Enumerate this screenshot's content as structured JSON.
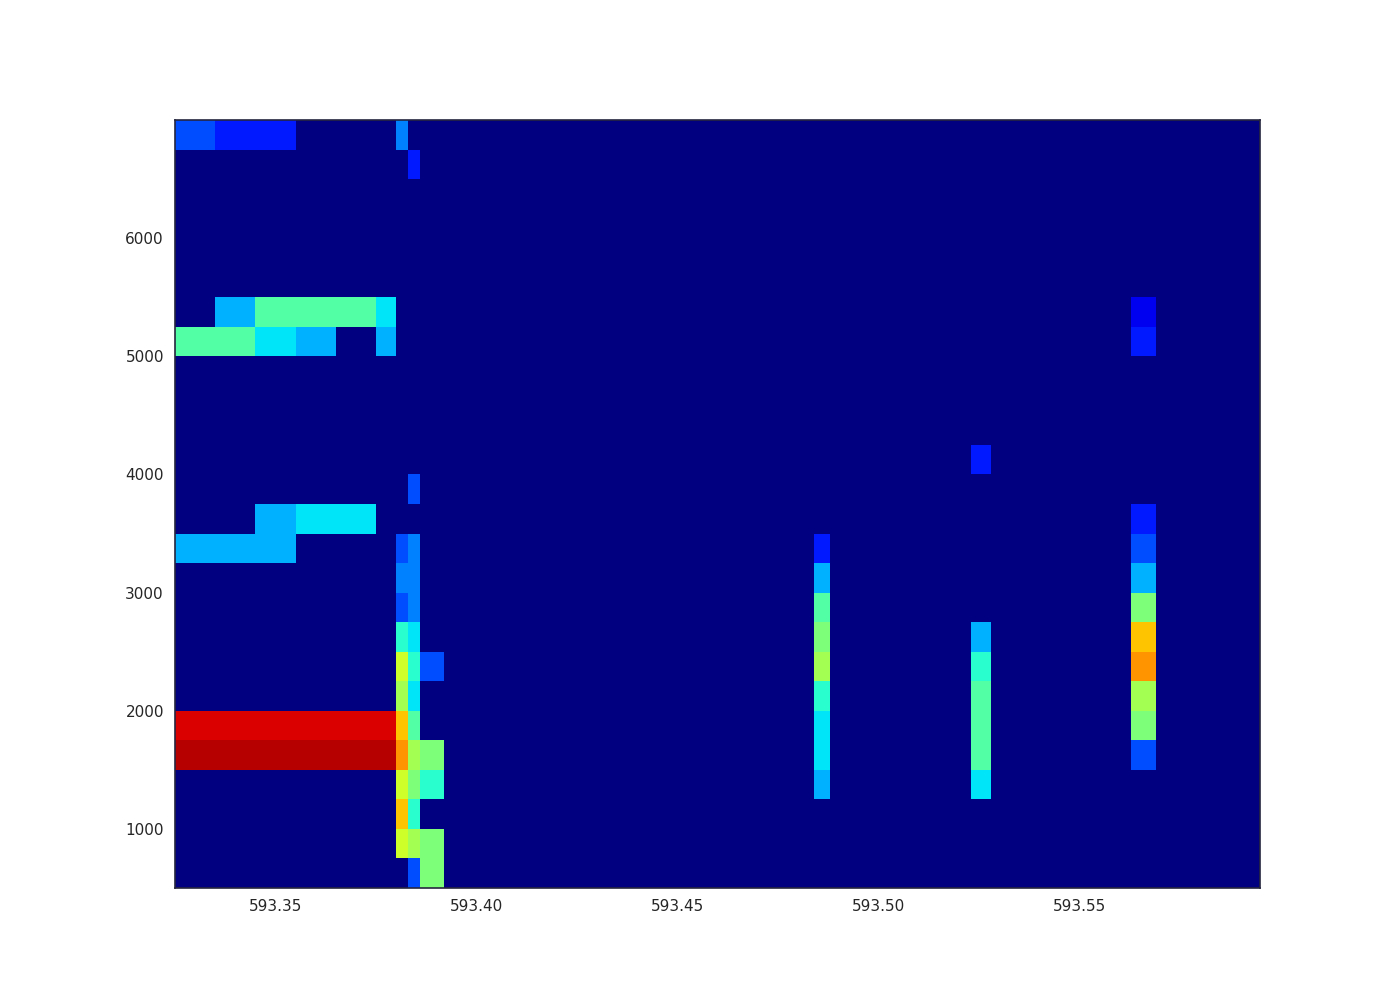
{
  "chart_data": {
    "type": "heatmap",
    "color": "jet",
    "xlim": [
      593.325,
      593.595
    ],
    "ylim": [
      500,
      7000
    ],
    "xticks": [
      593.35,
      {
        "value": 593.4,
        "label": "593.40"
      },
      593.45,
      {
        "value": 593.5,
        "label": "593.50"
      },
      593.55
    ],
    "yticks": [
      1000,
      2000,
      3000,
      4000,
      5000,
      6000
    ],
    "zlim": [
      0,
      1
    ],
    "x_edges": [
      593.325,
      593.335,
      593.345,
      593.355,
      593.365,
      593.375,
      593.38,
      593.383,
      593.386,
      593.392,
      593.484,
      593.488,
      593.523,
      593.528,
      593.563,
      593.569,
      593.595
    ],
    "y_edges": [
      500,
      750,
      1000,
      1250,
      1500,
      1750,
      2000,
      2250,
      2500,
      2750,
      3000,
      3250,
      3500,
      3750,
      4000,
      4250,
      4500,
      4750,
      5000,
      5250,
      5500,
      5750,
      6000,
      6250,
      6500,
      6750,
      7000
    ],
    "cells": [
      [
        0,
        0,
        0,
        0,
        0,
        0,
        0,
        0.2,
        0.5,
        0,
        0,
        0,
        0,
        0,
        0,
        0
      ],
      [
        0,
        0,
        0,
        0,
        0,
        0,
        0.6,
        0.55,
        0.5,
        0,
        0,
        0,
        0,
        0,
        0,
        0
      ],
      [
        0,
        0,
        0,
        0,
        0,
        0,
        0.7,
        0.4,
        0,
        0,
        0,
        0,
        0,
        0,
        0,
        0
      ],
      [
        0,
        0,
        0,
        0,
        0,
        0,
        0.6,
        0.5,
        0.4,
        0,
        0.3,
        0,
        0.35,
        0,
        0,
        0
      ],
      [
        0.95,
        0.95,
        0.95,
        0.95,
        0.95,
        0.95,
        0.75,
        0.55,
        0.5,
        0,
        0.35,
        0,
        0.45,
        0,
        0.2,
        0
      ],
      [
        0.92,
        0.92,
        0.92,
        0.92,
        0.92,
        0.92,
        0.7,
        0.45,
        0,
        0,
        0.35,
        0,
        0.45,
        0,
        0.5,
        0
      ],
      [
        0,
        0,
        0,
        0,
        0,
        0,
        0.55,
        0.35,
        0,
        0,
        0.4,
        0,
        0.45,
        0,
        0.55,
        0
      ],
      [
        0,
        0,
        0,
        0,
        0,
        0,
        0.6,
        0.4,
        0.2,
        0,
        0.55,
        0,
        0.4,
        0,
        0.75,
        0
      ],
      [
        0,
        0,
        0,
        0,
        0,
        0,
        0.4,
        0.35,
        0,
        0,
        0.5,
        0,
        0.3,
        0,
        0.7,
        0
      ],
      [
        0,
        0,
        0,
        0,
        0,
        0,
        0.2,
        0.25,
        0,
        0,
        0.45,
        0,
        0,
        0,
        0.5,
        0
      ],
      [
        0,
        0,
        0,
        0,
        0,
        0,
        0.25,
        0.25,
        0,
        0,
        0.3,
        0,
        0,
        0,
        0.3,
        0
      ],
      [
        0.3,
        0.3,
        0.3,
        0,
        0,
        0,
        0.2,
        0.25,
        0,
        0,
        0.15,
        0,
        0,
        0,
        0.2,
        0
      ],
      [
        0,
        0,
        0.3,
        0.35,
        0.35,
        0,
        0,
        0,
        0,
        0,
        0,
        0,
        0,
        0,
        0.15,
        0
      ],
      [
        0,
        0,
        0,
        0,
        0,
        0,
        0,
        0.2,
        0,
        0,
        0,
        0,
        0,
        0,
        0,
        0
      ],
      [
        0,
        0,
        0,
        0,
        0,
        0,
        0,
        0,
        0,
        0,
        0,
        0,
        0.15,
        0,
        0,
        0
      ],
      [
        0,
        0,
        0,
        0,
        0,
        0,
        0,
        0,
        0,
        0,
        0,
        0,
        0,
        0,
        0,
        0
      ],
      [
        0,
        0,
        0,
        0,
        0,
        0,
        0,
        0,
        0,
        0,
        0,
        0,
        0,
        0,
        0,
        0
      ],
      [
        0,
        0,
        0,
        0,
        0,
        0,
        0,
        0,
        0,
        0,
        0,
        0,
        0,
        0,
        0,
        0
      ],
      [
        0.45,
        0.45,
        0.35,
        0.3,
        0,
        0.3,
        0,
        0,
        0,
        0,
        0,
        0,
        0,
        0,
        0.15,
        0
      ],
      [
        0,
        0.3,
        0.45,
        0.45,
        0.45,
        0.35,
        0,
        0,
        0,
        0,
        0,
        0,
        0,
        0,
        0.1,
        0
      ],
      [
        0,
        0,
        0,
        0,
        0,
        0,
        0,
        0,
        0,
        0,
        0,
        0,
        0,
        0,
        0,
        0
      ],
      [
        0,
        0,
        0,
        0,
        0,
        0,
        0,
        0,
        0,
        0,
        0,
        0,
        0,
        0,
        0,
        0
      ],
      [
        0,
        0,
        0,
        0,
        0,
        0,
        0,
        0,
        0,
        0,
        0,
        0,
        0,
        0,
        0,
        0
      ],
      [
        0,
        0,
        0,
        0,
        0,
        0,
        0,
        0,
        0,
        0,
        0,
        0,
        0,
        0,
        0,
        0
      ],
      [
        0,
        0,
        0,
        0,
        0,
        0,
        0,
        0.15,
        0,
        0,
        0,
        0,
        0,
        0,
        0,
        0
      ],
      [
        0.2,
        0.15,
        0.15,
        0,
        0,
        0,
        0.25,
        0,
        0,
        0,
        0,
        0,
        0,
        0,
        0,
        0
      ]
    ]
  }
}
